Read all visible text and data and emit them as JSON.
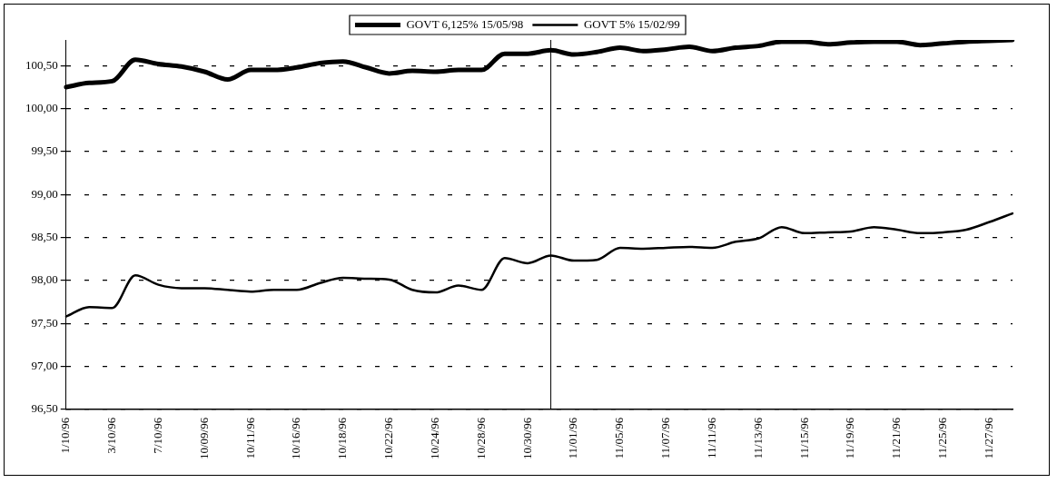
{
  "chart_data": {
    "type": "line",
    "categories": [
      "1/10/96",
      null,
      "3/10/96",
      null,
      "7/10/96",
      null,
      "10/09/96",
      null,
      "10/11/96",
      null,
      "10/16/96",
      null,
      "10/18/96",
      null,
      "10/22/96",
      null,
      "10/24/96",
      null,
      "10/28/96",
      null,
      "10/30/96",
      null,
      "11/01/96",
      null,
      "11/05/96",
      null,
      "11/07/96",
      null,
      "11/11/96",
      null,
      "11/13/96",
      null,
      "11/15/96",
      null,
      "11/19/96",
      null,
      "11/21/96",
      null,
      "11/25/96",
      null,
      "11/27/96",
      null
    ],
    "series": [
      {
        "name": "GOVT 6,125% 15/05/98",
        "color": "#000000",
        "values": [
          100.25,
          100.3,
          100.32,
          100.57,
          100.52,
          100.49,
          100.43,
          100.34,
          100.45,
          100.45,
          100.48,
          100.53,
          100.55,
          100.48,
          100.41,
          100.44,
          100.43,
          100.45,
          100.45,
          100.64,
          100.64,
          100.68,
          100.63,
          100.66,
          100.71,
          100.67,
          100.69,
          100.72,
          100.67,
          100.71,
          100.73,
          100.78,
          100.78,
          100.75,
          100.77,
          100.78,
          100.78,
          100.74,
          100.76,
          100.78,
          100.79,
          100.8
        ]
      },
      {
        "name": "GOVT 5% 15/02/99",
        "color": "#000000",
        "values": [
          97.58,
          97.69,
          97.68,
          98.06,
          97.95,
          97.91,
          97.91,
          97.89,
          97.87,
          97.89,
          97.89,
          97.97,
          98.03,
          98.02,
          98.01,
          97.89,
          97.86,
          97.94,
          97.89,
          98.26,
          98.2,
          98.29,
          98.23,
          98.24,
          98.38,
          98.37,
          98.38,
          98.39,
          98.38,
          98.45,
          98.49,
          98.62,
          98.55,
          98.56,
          98.57,
          98.62,
          98.59,
          98.55,
          98.56,
          98.59,
          98.68,
          98.78
        ]
      }
    ],
    "ylim": [
      96.5,
      100.8
    ],
    "yticks": [
      {
        "value": 96.5,
        "label": "96,50"
      },
      {
        "value": 97,
        "label": "97,00"
      },
      {
        "value": 97.5,
        "label": "97,50"
      },
      {
        "value": 98,
        "label": "98,00"
      },
      {
        "value": 98.5,
        "label": "98,50"
      },
      {
        "value": 99,
        "label": "99,00"
      },
      {
        "value": 99.5,
        "label": "99,50"
      },
      {
        "value": 100,
        "label": "100,00"
      },
      {
        "value": 100.5,
        "label": "100,50"
      }
    ],
    "grid": "y",
    "legend": "top",
    "marker": "none",
    "line_style": "solid"
  }
}
